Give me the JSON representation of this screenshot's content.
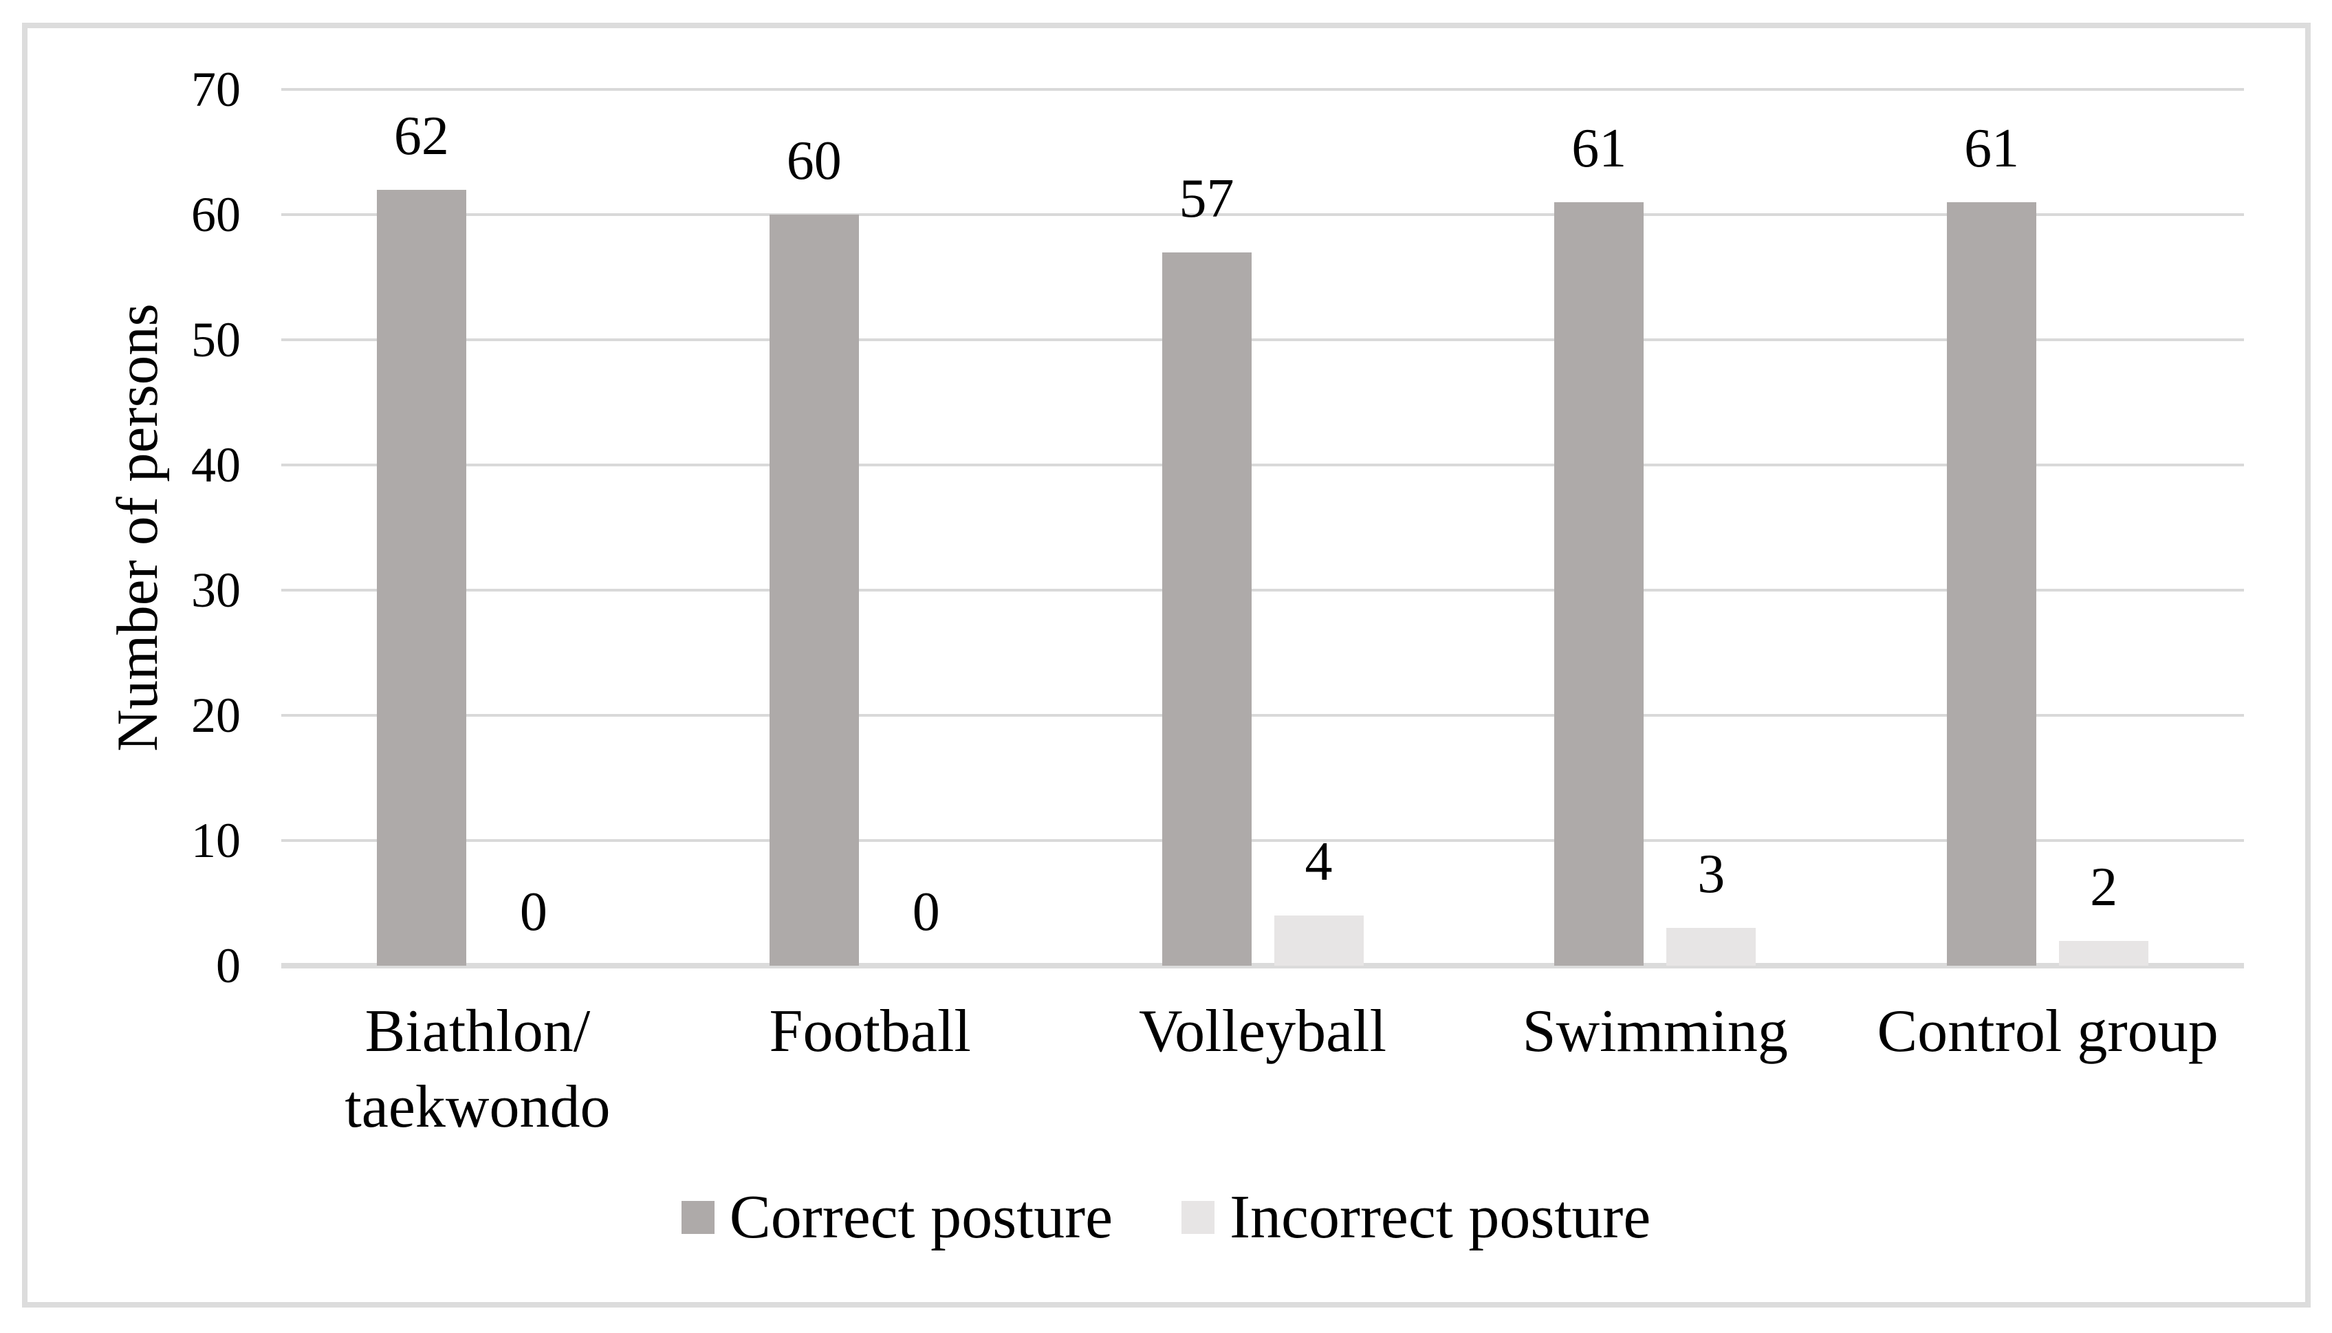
{
  "chart_data": {
    "type": "bar",
    "title": "",
    "categories": [
      "Biathlon/\ntaekwondo",
      "Football",
      "Volleyball",
      "Swimming",
      "Control group"
    ],
    "series": [
      {
        "name": "Correct posture",
        "color": "#AEAAA9",
        "values": [
          62,
          60,
          57,
          61,
          61
        ]
      },
      {
        "name": "Incorrect posture",
        "color": "#E7E5E5",
        "values": [
          0,
          0,
          4,
          3,
          2
        ]
      }
    ],
    "xlabel": "",
    "ylabel": "Number of persons",
    "ylim": [
      0,
      70
    ],
    "yticks": [
      0,
      10,
      20,
      30,
      40,
      50,
      60,
      70
    ],
    "grid": true,
    "legend_position": "bottom",
    "data_labels_shown": true
  },
  "styles": {
    "background": "#FFFFFF",
    "text_color": "#000000",
    "gridline_color": "#D9D9D9",
    "axis_line_color": "#DBDBDB",
    "frame_border_color": "#DCDCDC"
  }
}
